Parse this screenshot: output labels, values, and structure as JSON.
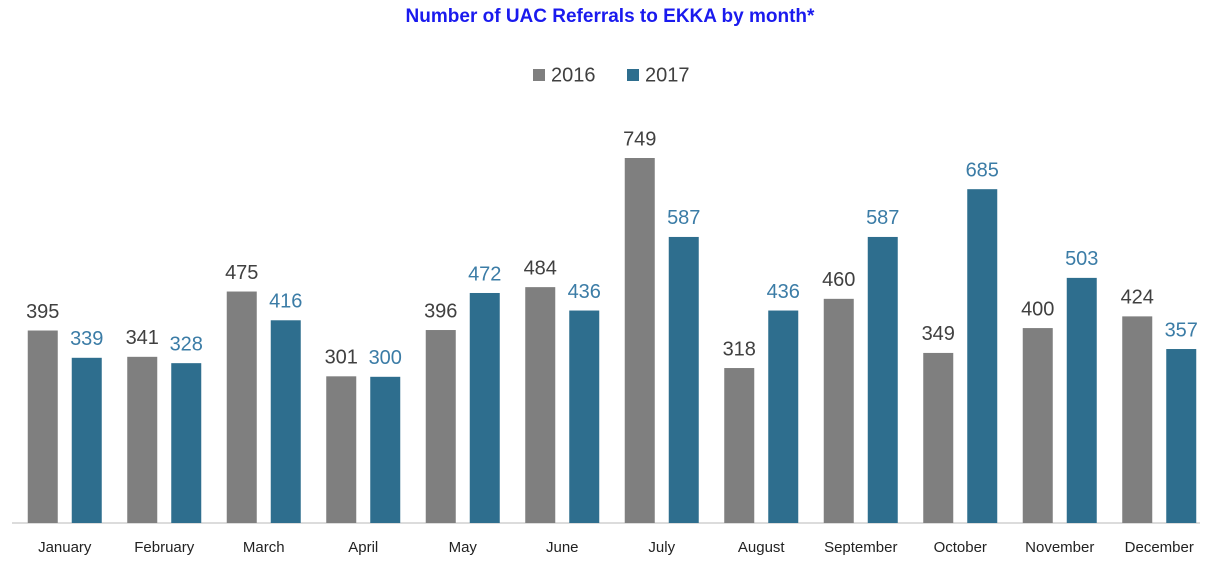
{
  "chart_data": {
    "type": "bar",
    "title": "Number of UAC Referrals to EKKA by month*",
    "categories": [
      "January",
      "February",
      "March",
      "April",
      "May",
      "June",
      "July",
      "August",
      "September",
      "October",
      "November",
      "December"
    ],
    "series": [
      {
        "name": "2016",
        "color": "#7f7f7f",
        "label_color": "#404040",
        "values": [
          395,
          341,
          475,
          301,
          396,
          484,
          749,
          318,
          460,
          349,
          400,
          424
        ]
      },
      {
        "name": "2017",
        "color": "#2e6e8e",
        "label_color": "#3b7ca6",
        "values": [
          339,
          328,
          416,
          300,
          472,
          436,
          587,
          436,
          587,
          685,
          503,
          357
        ]
      }
    ],
    "legend": "top"
  }
}
